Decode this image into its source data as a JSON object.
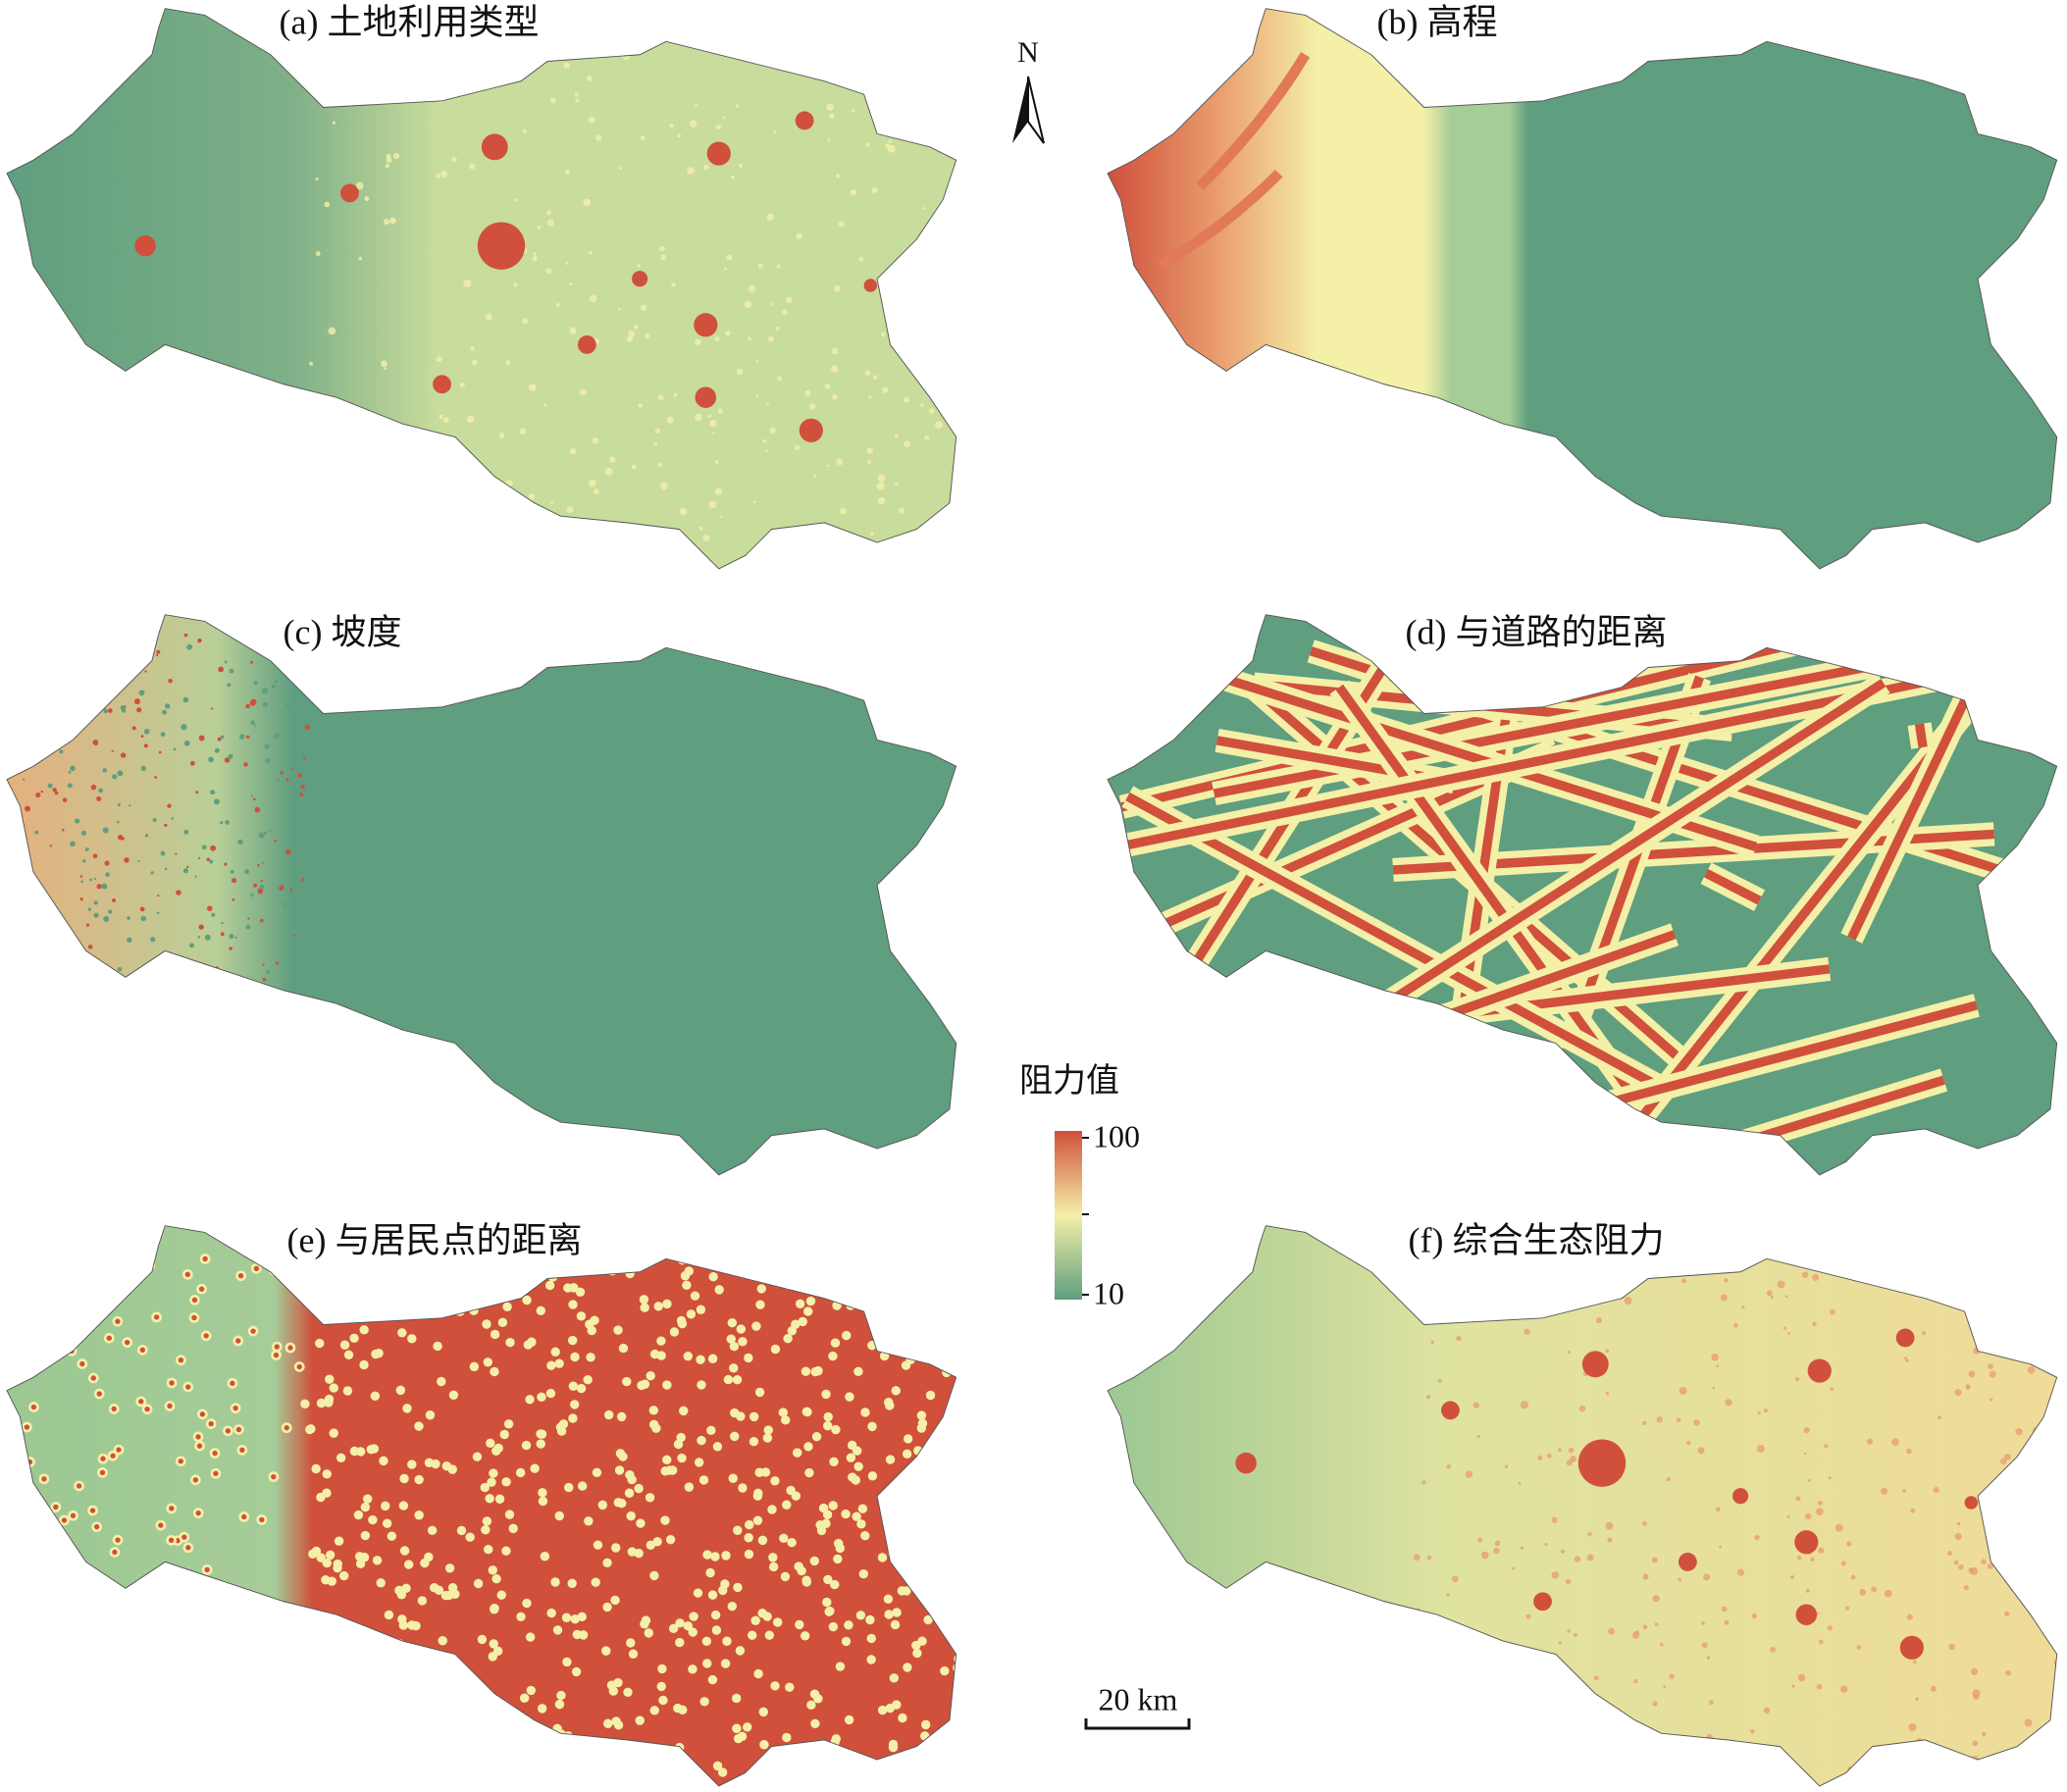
{
  "panels": [
    {
      "title": "(a) 土地利用类型"
    },
    {
      "title": "(b) 高程"
    },
    {
      "title": "(c) 坡度"
    },
    {
      "title": "(d) 与道路的距离"
    },
    {
      "title": "(e) 与居民点的距离"
    },
    {
      "title": "(f) 综合生态阻力"
    }
  ],
  "north_arrow": "N",
  "legend": {
    "title": "阻力值",
    "max": 100,
    "min": 10
  },
  "scale_bar": "20 km"
}
